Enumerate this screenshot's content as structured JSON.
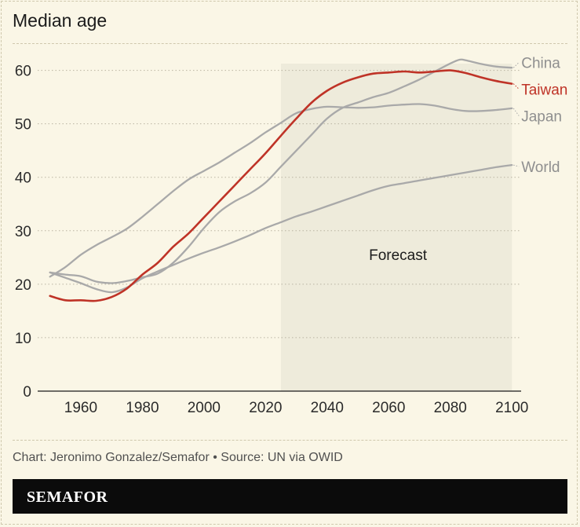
{
  "title": "Median age",
  "source": "Chart: Jeronimo Gonzalez/Semafor • Source: UN via OWID",
  "brand": "SEMAFOR",
  "colors": {
    "background": "#faf6e6",
    "forecast_band": "#eeebdb",
    "gray_series": "#a9a9a9",
    "highlight_series": "#bf3327",
    "brand_bar": "#0b0b0b"
  },
  "chart_data": {
    "type": "line",
    "title": "Median age",
    "xlabel": "",
    "ylabel": "",
    "xlim": [
      1946,
      2103
    ],
    "ylim": [
      0,
      62
    ],
    "x_ticks": [
      1960,
      1980,
      2000,
      2020,
      2040,
      2060,
      2080,
      2100
    ],
    "y_ticks": [
      0,
      10,
      20,
      30,
      40,
      50,
      60
    ],
    "grid": "horizontal dotted",
    "legend": "direct labels at right end of lines",
    "annotations": [
      {
        "label": "Forecast",
        "x_start": 2025,
        "x_end": 2100,
        "label_x": 2063,
        "label_y": 24.5
      }
    ],
    "series": [
      {
        "name": "China",
        "color": "#a9a9a9",
        "label_y": 61.5,
        "points": [
          [
            1950,
            22.2
          ],
          [
            1955,
            21.8
          ],
          [
            1960,
            21.5
          ],
          [
            1965,
            20.5
          ],
          [
            1970,
            20.2
          ],
          [
            1975,
            20.6
          ],
          [
            1980,
            21.3
          ],
          [
            1985,
            22.0
          ],
          [
            1990,
            24.0
          ],
          [
            1995,
            27.0
          ],
          [
            2000,
            30.5
          ],
          [
            2005,
            33.5
          ],
          [
            2010,
            35.5
          ],
          [
            2015,
            37.0
          ],
          [
            2020,
            39.0
          ],
          [
            2025,
            42.0
          ],
          [
            2030,
            45.0
          ],
          [
            2035,
            48.0
          ],
          [
            2040,
            51.0
          ],
          [
            2045,
            53.0
          ],
          [
            2050,
            54.0
          ],
          [
            2055,
            55.0
          ],
          [
            2060,
            55.8
          ],
          [
            2065,
            57.0
          ],
          [
            2070,
            58.3
          ],
          [
            2075,
            59.8
          ],
          [
            2080,
            61.3
          ],
          [
            2083,
            62.0
          ],
          [
            2085,
            61.9
          ],
          [
            2090,
            61.2
          ],
          [
            2095,
            60.7
          ],
          [
            2100,
            60.5
          ]
        ]
      },
      {
        "name": "Taiwan",
        "color": "#bf3327",
        "label_y": 56.5,
        "points": [
          [
            1950,
            17.8
          ],
          [
            1955,
            17.0
          ],
          [
            1960,
            17.0
          ],
          [
            1965,
            16.9
          ],
          [
            1970,
            17.6
          ],
          [
            1975,
            19.2
          ],
          [
            1980,
            21.8
          ],
          [
            1985,
            24.0
          ],
          [
            1990,
            27.0
          ],
          [
            1995,
            29.5
          ],
          [
            2000,
            32.5
          ],
          [
            2005,
            35.5
          ],
          [
            2010,
            38.5
          ],
          [
            2015,
            41.5
          ],
          [
            2020,
            44.5
          ],
          [
            2025,
            47.8
          ],
          [
            2030,
            51.0
          ],
          [
            2035,
            54.0
          ],
          [
            2040,
            56.2
          ],
          [
            2045,
            57.7
          ],
          [
            2050,
            58.7
          ],
          [
            2055,
            59.4
          ],
          [
            2060,
            59.6
          ],
          [
            2065,
            59.8
          ],
          [
            2070,
            59.6
          ],
          [
            2075,
            59.8
          ],
          [
            2080,
            60.0
          ],
          [
            2085,
            59.5
          ],
          [
            2090,
            58.7
          ],
          [
            2095,
            58.0
          ],
          [
            2100,
            57.5
          ]
        ]
      },
      {
        "name": "Japan",
        "color": "#a9a9a9",
        "label_y": 51.5,
        "points": [
          [
            1950,
            21.4
          ],
          [
            1955,
            23.2
          ],
          [
            1960,
            25.5
          ],
          [
            1965,
            27.3
          ],
          [
            1970,
            28.8
          ],
          [
            1975,
            30.4
          ],
          [
            1980,
            32.6
          ],
          [
            1985,
            35.0
          ],
          [
            1990,
            37.4
          ],
          [
            1995,
            39.6
          ],
          [
            2000,
            41.2
          ],
          [
            2005,
            42.8
          ],
          [
            2010,
            44.6
          ],
          [
            2015,
            46.4
          ],
          [
            2020,
            48.4
          ],
          [
            2025,
            50.2
          ],
          [
            2030,
            52.0
          ],
          [
            2035,
            52.8
          ],
          [
            2040,
            53.2
          ],
          [
            2045,
            53.1
          ],
          [
            2050,
            53.0
          ],
          [
            2055,
            53.1
          ],
          [
            2060,
            53.4
          ],
          [
            2065,
            53.6
          ],
          [
            2070,
            53.7
          ],
          [
            2075,
            53.4
          ],
          [
            2080,
            52.8
          ],
          [
            2085,
            52.4
          ],
          [
            2090,
            52.4
          ],
          [
            2095,
            52.6
          ],
          [
            2100,
            52.9
          ]
        ]
      },
      {
        "name": "World",
        "color": "#a9a9a9",
        "label_y": 42.0,
        "points": [
          [
            1950,
            22.2
          ],
          [
            1955,
            21.2
          ],
          [
            1960,
            20.2
          ],
          [
            1965,
            19.1
          ],
          [
            1970,
            18.5
          ],
          [
            1975,
            19.4
          ],
          [
            1980,
            21.1
          ],
          [
            1985,
            22.4
          ],
          [
            1990,
            23.6
          ],
          [
            1995,
            24.8
          ],
          [
            2000,
            25.9
          ],
          [
            2005,
            26.9
          ],
          [
            2010,
            28.0
          ],
          [
            2015,
            29.2
          ],
          [
            2020,
            30.5
          ],
          [
            2025,
            31.6
          ],
          [
            2030,
            32.7
          ],
          [
            2035,
            33.6
          ],
          [
            2040,
            34.6
          ],
          [
            2045,
            35.6
          ],
          [
            2050,
            36.6
          ],
          [
            2055,
            37.6
          ],
          [
            2060,
            38.4
          ],
          [
            2065,
            38.9
          ],
          [
            2070,
            39.4
          ],
          [
            2075,
            39.9
          ],
          [
            2080,
            40.4
          ],
          [
            2085,
            40.9
          ],
          [
            2090,
            41.4
          ],
          [
            2095,
            41.9
          ],
          [
            2100,
            42.3
          ]
        ]
      }
    ]
  }
}
